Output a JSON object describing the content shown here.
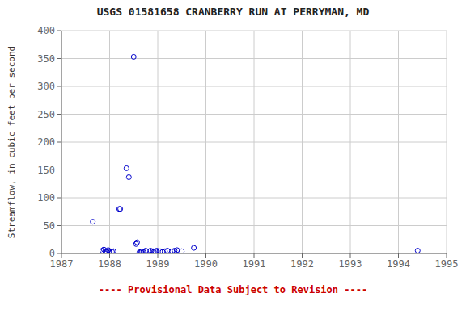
{
  "chart_data": {
    "type": "scatter",
    "title": "USGS 01581658 CRANBERRY RUN AT PERRYMAN, MD",
    "y_label": "Streamflow, in cubic feet per second",
    "annotations": [
      {
        "text": "---- Provisional Data Subject to Revision ----",
        "color": "#cc0000"
      }
    ],
    "x": [
      1987.65,
      1987.85,
      1987.88,
      1987.91,
      1987.94,
      1987.97,
      1988.0,
      1988.05,
      1988.08,
      1988.2,
      1988.22,
      1988.35,
      1988.4,
      1988.5,
      1988.55,
      1988.57,
      1988.62,
      1988.65,
      1988.67,
      1988.7,
      1988.75,
      1988.85,
      1988.9,
      1988.92,
      1988.95,
      1988.98,
      1989.05,
      1989.1,
      1989.15,
      1989.2,
      1989.3,
      1989.35,
      1989.4,
      1989.5,
      1989.75,
      1994.4
    ],
    "values": [
      57,
      5,
      7,
      4,
      3,
      6,
      2,
      3,
      4,
      80,
      80,
      153,
      137,
      353,
      17,
      20,
      2,
      3,
      4,
      3,
      5,
      5,
      4,
      3,
      4,
      5,
      4,
      3,
      4,
      5,
      4,
      5,
      6,
      4,
      10,
      5
    ],
    "color": "#0000cc",
    "marker": "open_circle",
    "xlim": [
      1987,
      1995
    ],
    "ylim": [
      0,
      400
    ],
    "xticks": [
      1987,
      1988,
      1989,
      1990,
      1991,
      1992,
      1993,
      1994,
      1995
    ],
    "yticks": [
      0,
      50,
      100,
      150,
      200,
      250,
      300,
      350,
      400
    ],
    "grid": true
  }
}
